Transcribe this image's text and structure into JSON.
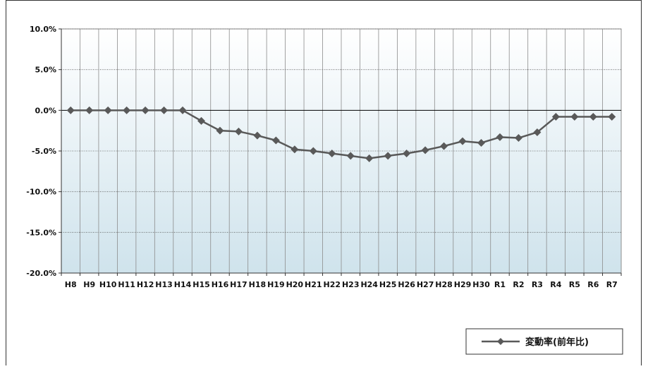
{
  "chart_data": {
    "type": "line",
    "categories": [
      "H8",
      "H9",
      "H10",
      "H11",
      "H12",
      "H13",
      "H14",
      "H15",
      "H16",
      "H17",
      "H18",
      "H19",
      "H20",
      "H21",
      "H22",
      "H23",
      "H24",
      "H25",
      "H26",
      "H27",
      "H28",
      "H29",
      "H30",
      "R1",
      "R2",
      "R3",
      "R4",
      "R5",
      "R6",
      "R7"
    ],
    "series": [
      {
        "name": "変動率(前年比)",
        "values": [
          0.0,
          0.0,
          0.0,
          0.0,
          0.0,
          0.0,
          0.0,
          -1.3,
          -2.5,
          -2.6,
          -3.1,
          -3.7,
          -4.8,
          -5.0,
          -5.3,
          -5.6,
          -5.9,
          -5.6,
          -5.3,
          -4.9,
          -4.4,
          -3.8,
          -4.0,
          -3.3,
          -3.4,
          -2.7,
          -0.8,
          -0.8,
          -0.8,
          -0.8
        ]
      }
    ],
    "ylim": [
      -20,
      10
    ],
    "yticks": [
      10,
      5,
      0,
      -5,
      -10,
      -15,
      -20
    ],
    "ytick_labels": [
      "10.0%",
      "5.0%",
      "0.0%",
      "-5.0%",
      "-10.0%",
      "-15.0%",
      "-20.0%"
    ],
    "title": "",
    "xlabel": "",
    "ylabel": "",
    "grid": true,
    "legend": "bottom-right",
    "colors": {
      "line": "#595959",
      "marker": "#595959",
      "grid": "#8c8c8c",
      "zero_line": "#000000",
      "bg_top": "#ffffff",
      "bg_bottom": "#cfe3ec"
    }
  }
}
